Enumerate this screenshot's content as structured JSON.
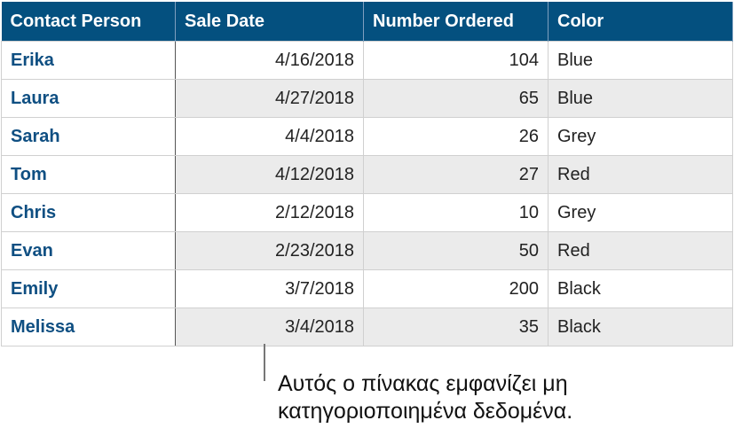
{
  "table": {
    "headers": [
      "Contact Person",
      "Sale Date",
      "Number Ordered",
      "Color"
    ],
    "rows": [
      [
        "Erika",
        "4/16/2018",
        "104",
        "Blue"
      ],
      [
        "Laura",
        "4/27/2018",
        "65",
        "Blue"
      ],
      [
        "Sarah",
        "4/4/2018",
        "26",
        "Grey"
      ],
      [
        "Tom",
        "4/12/2018",
        "27",
        "Red"
      ],
      [
        "Chris",
        "2/12/2018",
        "10",
        "Grey"
      ],
      [
        "Evan",
        "2/23/2018",
        "50",
        "Red"
      ],
      [
        "Emily",
        "3/7/2018",
        "200",
        "Black"
      ],
      [
        "Melissa",
        "3/4/2018",
        "35",
        "Black"
      ]
    ]
  },
  "callout": {
    "line1": "Αυτός ο πίνακας εμφανίζει μη",
    "line2": "κατηγοριοποιημένα δεδομένα."
  },
  "colors": {
    "header": "#04507f",
    "name_text": "#0f4f82",
    "alt_row": "#ebebeb"
  }
}
